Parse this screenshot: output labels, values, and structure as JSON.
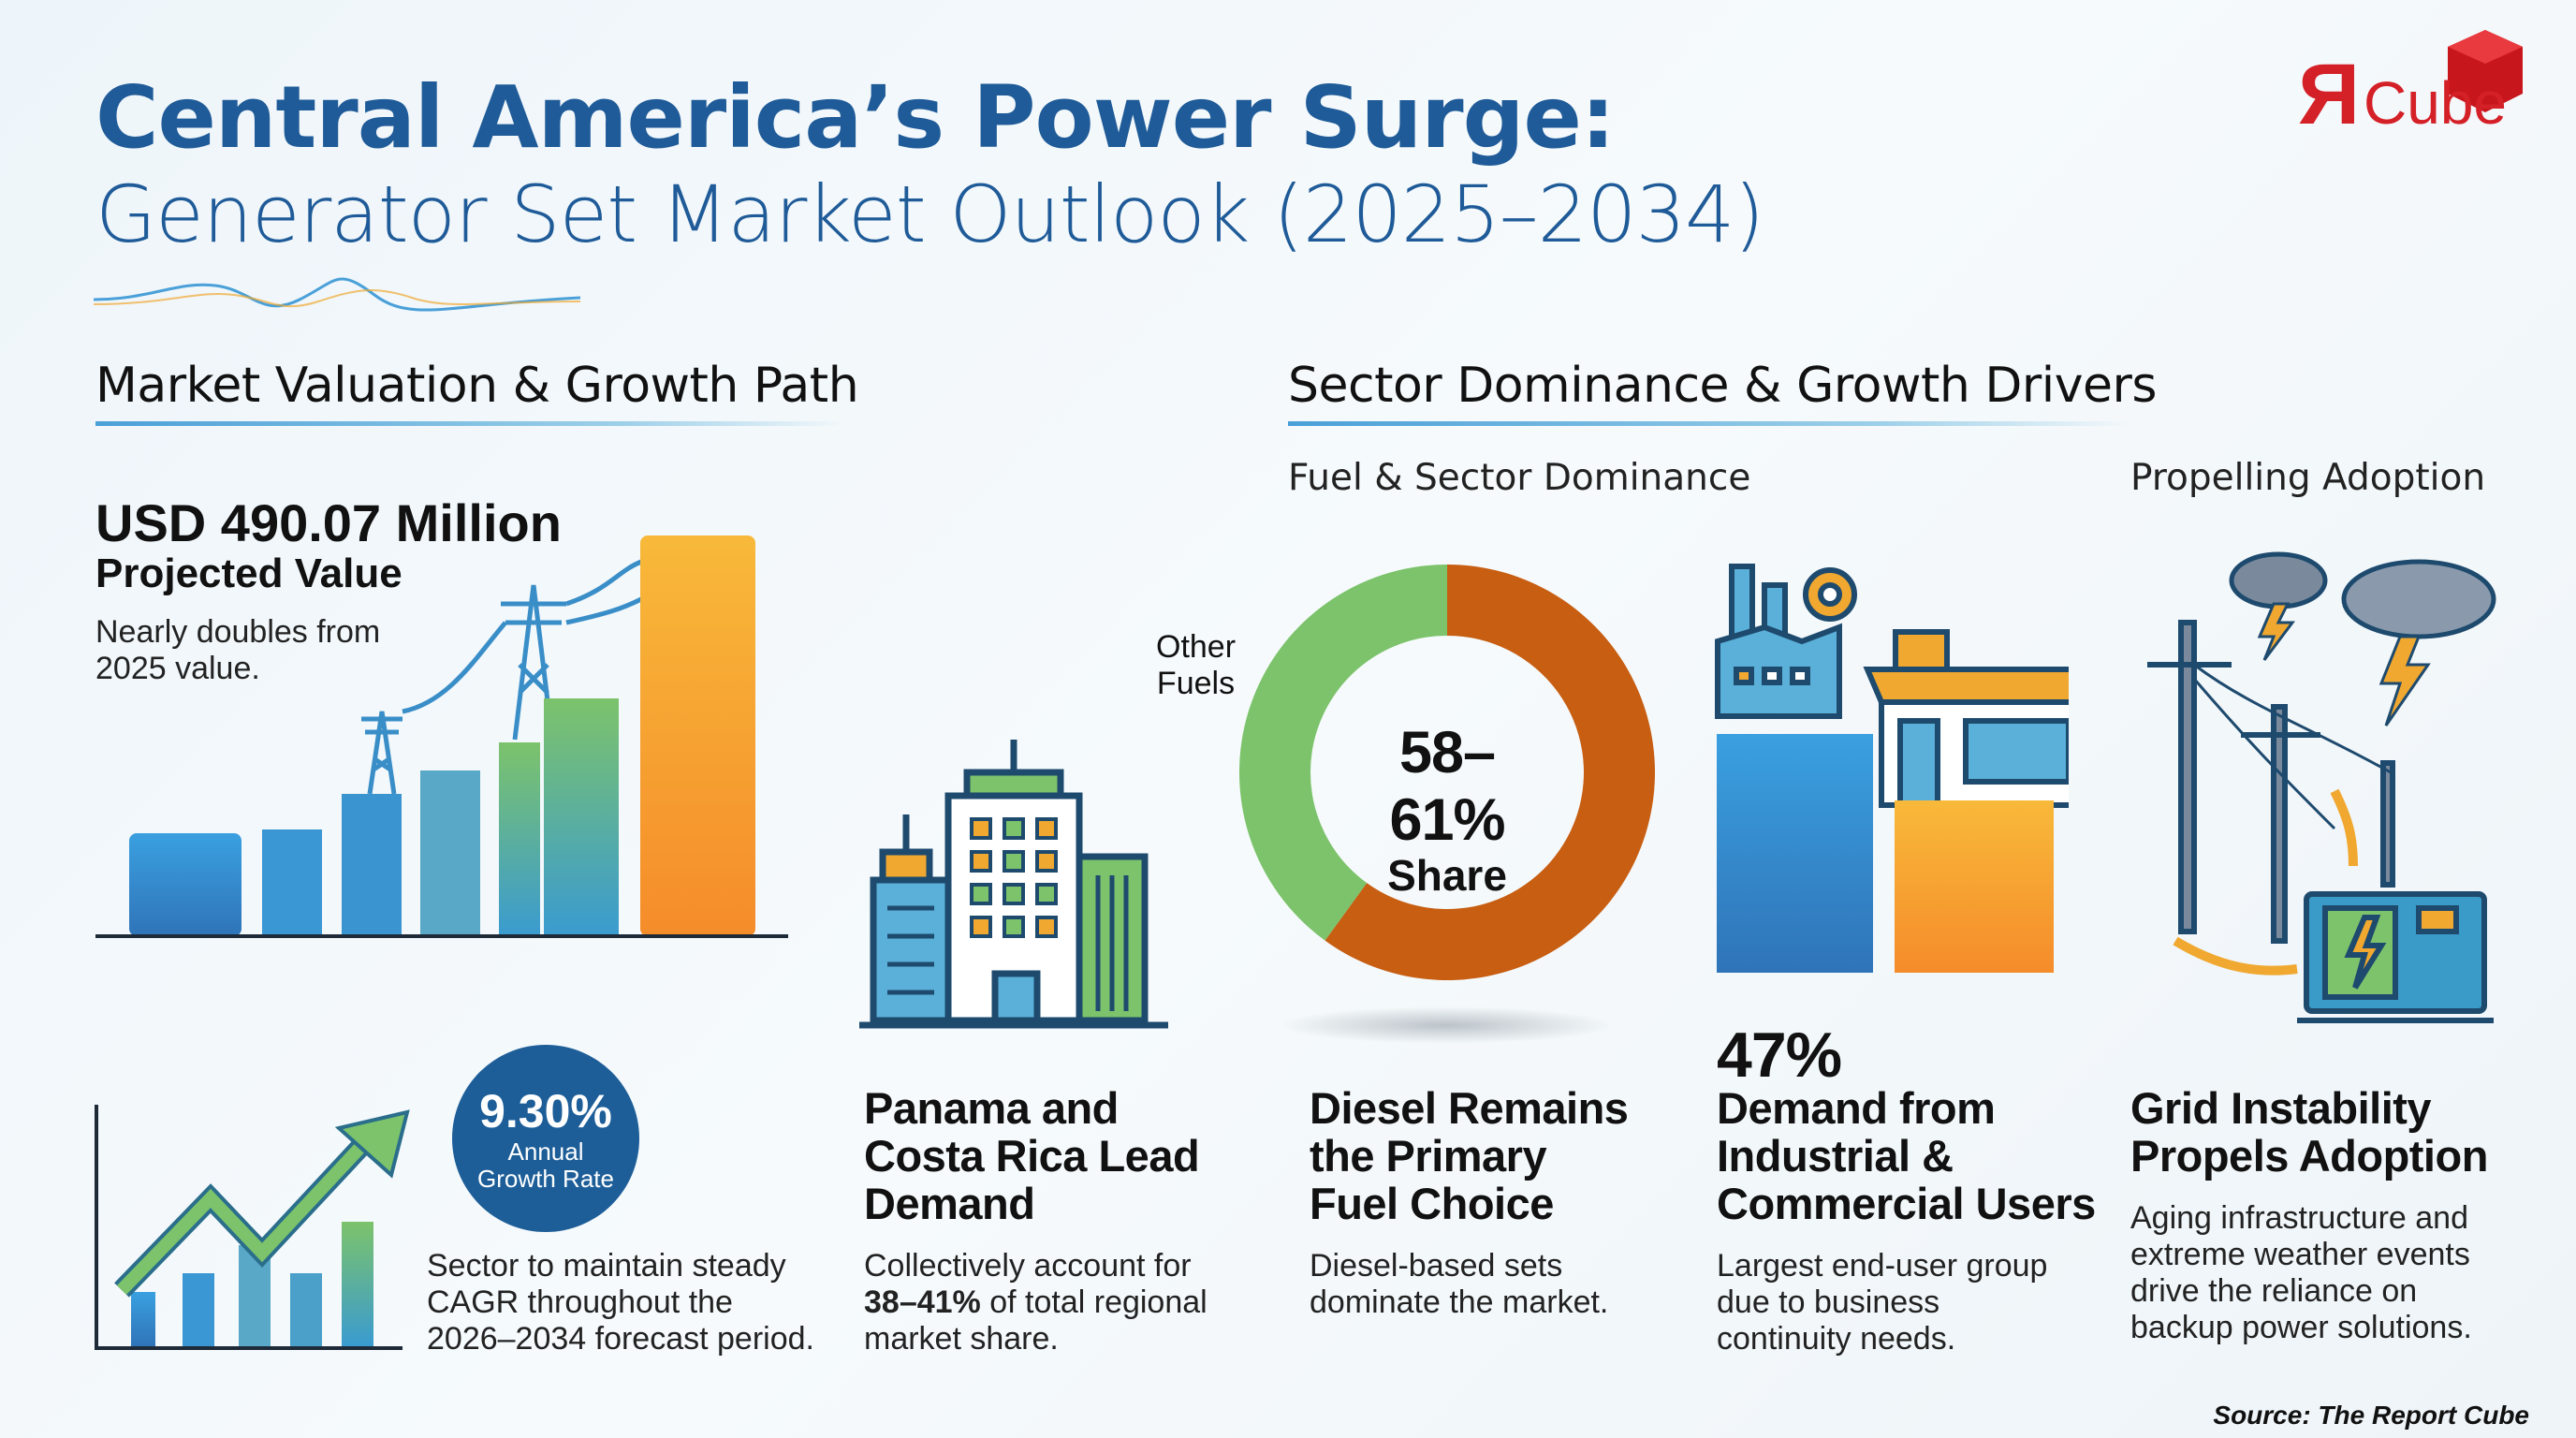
{
  "title": {
    "line1": "Central America’s Power Surge:",
    "line2": "Generator Set Market Outlook (2025–2034)"
  },
  "logo": {
    "text": "ЯCube",
    "brand_color": "#d42027"
  },
  "left_section": {
    "heading": "Market Valuation & Growth Path",
    "value": "USD 490.07 Million",
    "value_label": "Projected Value",
    "value_note_1": "Nearly doubles from",
    "value_note_2": "2025 value.",
    "cagr": "9.30%",
    "cagr_label_1": "Annual",
    "cagr_label_2": "Growth Rate",
    "cagr_note": [
      "Sector to maintain steady",
      "CAGR throughout the",
      "2026–2034 forecast period."
    ]
  },
  "panama": {
    "heading": [
      "Panama and",
      "Costa Rica Lead",
      "Demand"
    ],
    "text_1": "Collectively account for",
    "text_bold": "38–41%",
    "text_2": " of total regional",
    "text_3": "market share."
  },
  "right_section": {
    "heading": "Sector Dominance & Growth Drivers",
    "sub_left": "Fuel & Sector Dominance",
    "sub_right": "Propelling Adoption"
  },
  "donut": {
    "center_value": "58–61%",
    "center_label": "Share",
    "other_label_1": "Other",
    "other_label_2": "Fuels",
    "diesel_share": 0.6,
    "diesel_color": "#c75e12",
    "other_color": "#7cc36b"
  },
  "diesel": {
    "heading": [
      "Diesel Remains",
      "the Primary",
      "Fuel Choice"
    ],
    "text": [
      "Diesel-based sets",
      "dominate the market."
    ]
  },
  "industrial": {
    "value": "47%",
    "heading": [
      "Demand from",
      "Industrial &",
      "Commercial Users"
    ],
    "text": [
      "Largest end-user group",
      "due to business",
      "continuity needs."
    ]
  },
  "grid": {
    "heading": [
      "Grid Instability",
      "Propels Adoption"
    ],
    "text": [
      "Aging infrastructure and",
      "extreme weather events",
      "drive the reliance on",
      "backup power solutions."
    ]
  },
  "source": "Source: The Report Cube"
}
